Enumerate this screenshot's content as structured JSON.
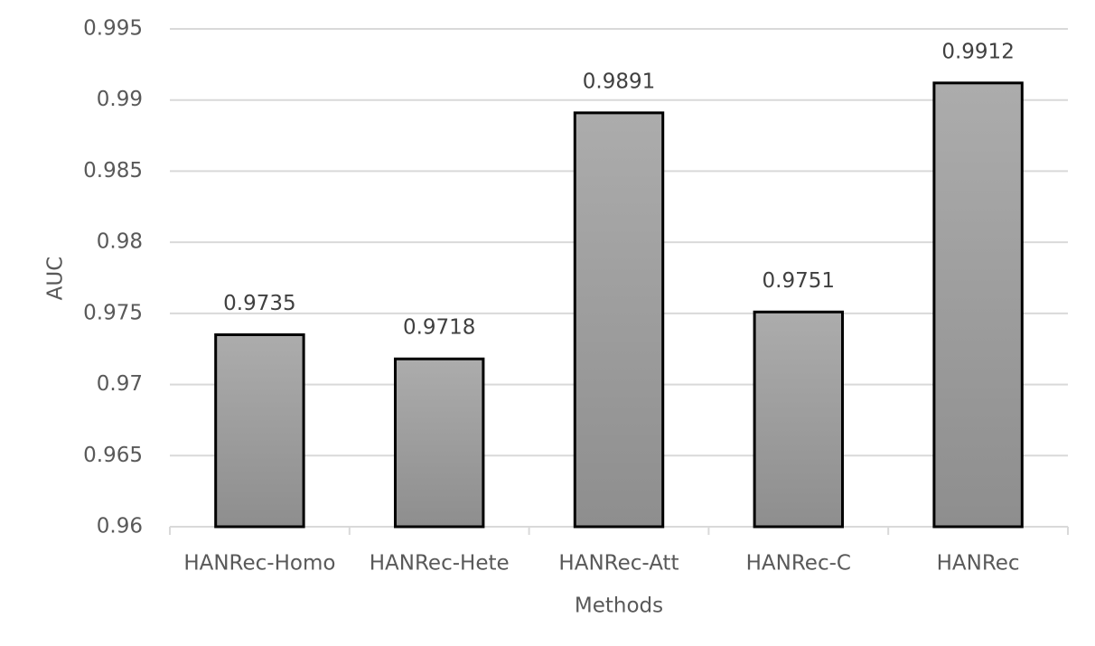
{
  "chart_data": {
    "type": "bar",
    "categories": [
      "HANRec-Homo",
      "HANRec-Hete",
      "HANRec-Att",
      "HANRec-C",
      "HANRec"
    ],
    "values": [
      0.9735,
      0.9718,
      0.9891,
      0.9751,
      0.9912
    ],
    "x_label": "Methods",
    "y_label": "AUC",
    "ylim": [
      0.96,
      0.995
    ],
    "yticks": [
      0.96,
      0.965,
      0.97,
      0.975,
      0.98,
      0.985,
      0.99,
      0.995
    ],
    "grid": true,
    "color": "#a0a0a0"
  }
}
